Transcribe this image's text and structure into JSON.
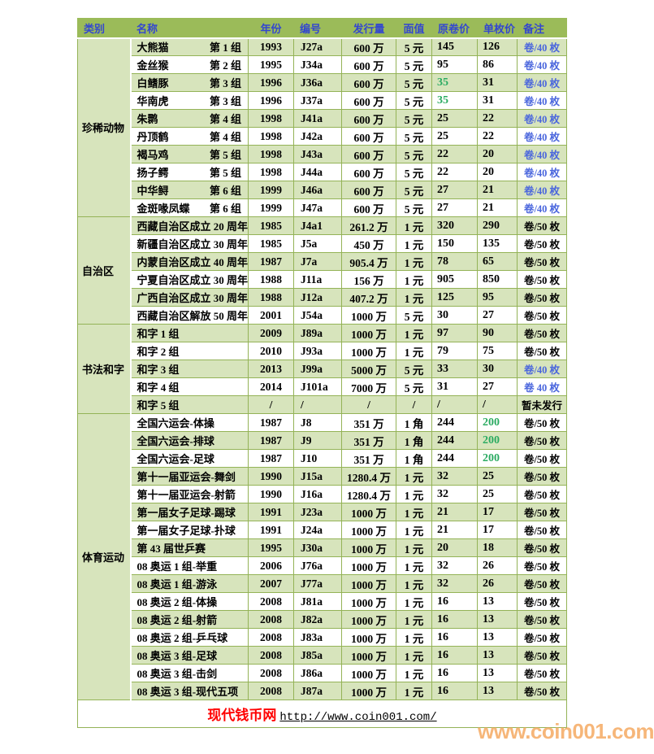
{
  "page": {
    "watermark": "www.coin001.com"
  },
  "colors": {
    "header_bg": "#9bbb59",
    "row_alt_green": "#d7e4bc",
    "grid_border": "#94b357",
    "header_text_blue": "#3347cf",
    "note_blue": "#4a66dd",
    "value_green": "#2bab62",
    "site_red": "#ff0000",
    "watermark_orange": "#f5a558"
  },
  "table": {
    "headers": [
      "类别",
      "名称",
      "年份",
      "编号",
      "发行量",
      "面值",
      "原卷价",
      "单枚价",
      "备注"
    ],
    "sections": [
      {
        "category": "珍稀动物",
        "rows": [
          {
            "name": "大熊猫",
            "group": "第 1 组",
            "year": "1993",
            "code": "J27a",
            "issue": "600 万",
            "face": "5 元",
            "roll": "145",
            "single": "126",
            "note": "卷/40 枚",
            "note_blue": true
          },
          {
            "name": "金丝猴",
            "group": "第 2 组",
            "year": "1995",
            "code": "J34a",
            "issue": "600 万",
            "face": "5 元",
            "roll": "95",
            "single": "86",
            "note": "卷/40 枚",
            "note_blue": true
          },
          {
            "name": "白鳍豚",
            "group": "第 3 组",
            "year": "1996",
            "code": "J36a",
            "issue": "600 万",
            "face": "5 元",
            "roll": "35",
            "roll_green": true,
            "single": "31",
            "note": "卷/40 枚",
            "note_blue": true
          },
          {
            "name": "华南虎",
            "group": "第 3 组",
            "year": "1996",
            "code": "J37a",
            "issue": "600 万",
            "face": "5 元",
            "roll": "35",
            "roll_green": true,
            "single": "31",
            "note": "卷/40 枚",
            "note_blue": true
          },
          {
            "name": "朱鹮",
            "group": "第 4 组",
            "year": "1998",
            "code": "J41a",
            "issue": "600 万",
            "face": "5 元",
            "roll": "25",
            "single": "22",
            "note": "卷/40 枚",
            "note_blue": true
          },
          {
            "name": "丹顶鹤",
            "group": "第 4 组",
            "year": "1998",
            "code": "J42a",
            "issue": "600 万",
            "face": "5 元",
            "roll": "25",
            "single": "22",
            "note": "卷/40 枚",
            "note_blue": true
          },
          {
            "name": "褐马鸡",
            "group": "第 5 组",
            "year": "1998",
            "code": "J43a",
            "issue": "600 万",
            "face": "5 元",
            "roll": "22",
            "single": "20",
            "note": "卷/40 枚",
            "note_blue": true
          },
          {
            "name": "扬子鳄",
            "group": "第 5 组",
            "year": "1998",
            "code": "J44a",
            "issue": "600 万",
            "face": "5 元",
            "roll": "22",
            "single": "20",
            "note": "卷/40 枚",
            "note_blue": true
          },
          {
            "name": "中华鲟",
            "group": "第 6 组",
            "year": "1999",
            "code": "J46a",
            "issue": "600 万",
            "face": "5 元",
            "roll": "27",
            "single": "21",
            "note": "卷/40 枚",
            "note_blue": true
          },
          {
            "name": "金斑喙凤蝶",
            "group": "第 6 组",
            "year": "1999",
            "code": "J47a",
            "issue": "600 万",
            "face": "5 元",
            "roll": "27",
            "single": "21",
            "note": "卷/40 枚",
            "note_blue": true
          }
        ]
      },
      {
        "category": "自治区",
        "rows": [
          {
            "name": "西藏自治区成立 20 周年",
            "year": "1985",
            "code": "J4a1",
            "issue": "261.2 万",
            "face": "1 元",
            "roll": "320",
            "single": "290",
            "note": "卷/50 枚"
          },
          {
            "name": "新疆自治区成立 30 周年",
            "year": "1985",
            "code": "J5a",
            "issue": "450 万",
            "face": "1 元",
            "roll": "150",
            "single": "135",
            "note": "卷/50 枚"
          },
          {
            "name": "内蒙自治区成立 40 周年",
            "year": "1987",
            "code": "J7a",
            "issue": "905.4 万",
            "face": "1 元",
            "roll": "78",
            "single": "65",
            "note": "卷/50 枚"
          },
          {
            "name": "宁夏自治区成立 30 周年",
            "year": "1988",
            "code": "J11a",
            "issue": "156 万",
            "face": "1 元",
            "roll": "905",
            "single": "850",
            "note": "卷/50 枚"
          },
          {
            "name": "广西自治区成立 30 周年",
            "year": "1988",
            "code": "J12a",
            "issue": "407.2 万",
            "face": "1 元",
            "roll": "125",
            "single": "95",
            "note": "卷/50 枚"
          },
          {
            "name": "西藏自治区解放 50 周年",
            "year": "2001",
            "code": "J54a",
            "issue": "1000 万",
            "face": "5 元",
            "roll": "30",
            "single": "27",
            "note": "卷/50 枚"
          }
        ]
      },
      {
        "category": "书法和字",
        "rows": [
          {
            "name": "和字 1 组",
            "year": "2009",
            "code": "J89a",
            "issue": "1000 万",
            "face": "1 元",
            "roll": "97",
            "single": "90",
            "note": "卷/50 枚"
          },
          {
            "name": "和字 2 组",
            "year": "2010",
            "code": "J93a",
            "issue": "1000 万",
            "face": "1 元",
            "roll": "79",
            "single": "75",
            "note": "卷/50 枚"
          },
          {
            "name": "和字 3 组",
            "year": "2013",
            "code": "J99a",
            "issue": "5000 万",
            "face": "5 元",
            "roll": "33",
            "single": "30",
            "note": "卷/40 枚",
            "note_blue": true
          },
          {
            "name": "和字 4 组",
            "year": "2014",
            "code": "J101a",
            "issue": "7000 万",
            "face": "5 元",
            "roll": "31",
            "single": "27",
            "note": "卷 40 枚",
            "note_blue": true
          },
          {
            "name": "和字 5 组",
            "year": "/",
            "code": "/",
            "issue": "/",
            "face": "/",
            "roll": "/",
            "single": "/",
            "note": "暂未发行"
          }
        ]
      },
      {
        "category": "体育运动",
        "rows": [
          {
            "name": "全国六运会-体操",
            "year": "1987",
            "code": "J8",
            "issue": "351 万",
            "face": "1 角",
            "roll": "244",
            "single": "200",
            "single_green": true,
            "note": "卷/50 枚"
          },
          {
            "name": "全国六运会-排球",
            "year": "1987",
            "code": "J9",
            "issue": "351 万",
            "face": "1 角",
            "roll": "244",
            "single": "200",
            "single_green": true,
            "note": "卷/50 枚"
          },
          {
            "name": "全国六运会-足球",
            "year": "1987",
            "code": "J10",
            "issue": "351 万",
            "face": "1 角",
            "roll": "244",
            "single": "200",
            "single_green": true,
            "note": "卷/50 枚"
          },
          {
            "name": "第十一届亚运会-舞剑",
            "year": "1990",
            "code": "J15a",
            "issue": "1280.4 万",
            "face": "1 元",
            "roll": "32",
            "single": "25",
            "note": "卷/50 枚"
          },
          {
            "name": "第十一届亚运会-射箭",
            "year": "1990",
            "code": "J16a",
            "issue": "1280.4 万",
            "face": "1 元",
            "roll": "32",
            "single": "25",
            "note": "卷/50 枚"
          },
          {
            "name": "第一届女子足球-踢球",
            "year": "1991",
            "code": "J23a",
            "issue": "1000 万",
            "face": "1 元",
            "roll": "21",
            "single": "17",
            "note": "卷/50 枚"
          },
          {
            "name": "第一届女子足球-扑球",
            "year": "1991",
            "code": "J24a",
            "issue": "1000 万",
            "face": "1 元",
            "roll": "21",
            "single": "17",
            "note": "卷/50 枚"
          },
          {
            "name": "第 43 届世乒赛",
            "year": "1995",
            "code": "J30a",
            "issue": "1000 万",
            "face": "1 元",
            "roll": "20",
            "single": "18",
            "note": "卷/50 枚"
          },
          {
            "name": "08 奥运 1 组-举重",
            "year": "2006",
            "code": "J76a",
            "issue": "1000 万",
            "face": "1 元",
            "roll": "32",
            "single": "26",
            "note": "卷/50 枚"
          },
          {
            "name": "08 奥运 1 组-游泳",
            "year": "2007",
            "code": "J77a",
            "issue": "1000 万",
            "face": "1 元",
            "roll": "32",
            "single": "26",
            "note": "卷/50 枚"
          },
          {
            "name": "08 奥运 2 组-体操",
            "year": "2008",
            "code": "J81a",
            "issue": "1000 万",
            "face": "1 元",
            "roll": "16",
            "single": "13",
            "note": "卷/50 枚"
          },
          {
            "name": "08 奥运 2 组-射箭",
            "year": "2008",
            "code": "J82a",
            "issue": "1000 万",
            "face": "1 元",
            "roll": "16",
            "single": "13",
            "note": "卷/50 枚"
          },
          {
            "name": "08 奥运 2 组-乒乓球",
            "year": "2008",
            "code": "J83a",
            "issue": "1000 万",
            "face": "1 元",
            "roll": "16",
            "single": "13",
            "note": "卷/50 枚"
          },
          {
            "name": "08 奥运 3 组-足球",
            "year": "2008",
            "code": "J85a",
            "issue": "1000 万",
            "face": "1 元",
            "roll": "16",
            "single": "13",
            "note": "卷/50 枚"
          },
          {
            "name": "08 奥运 3 组-击剑",
            "year": "2008",
            "code": "J86a",
            "issue": "1000 万",
            "face": "1 元",
            "roll": "16",
            "single": "13",
            "note": "卷/50 枚"
          },
          {
            "name": "08 奥运 3 组-现代五项",
            "year": "2008",
            "code": "J87a",
            "issue": "1000 万",
            "face": "1 元",
            "roll": "16",
            "single": "13",
            "note": "卷/50 枚"
          }
        ]
      }
    ],
    "footer": {
      "site_name": "现代钱币网",
      "url": "http://www.coin001.com/"
    }
  }
}
